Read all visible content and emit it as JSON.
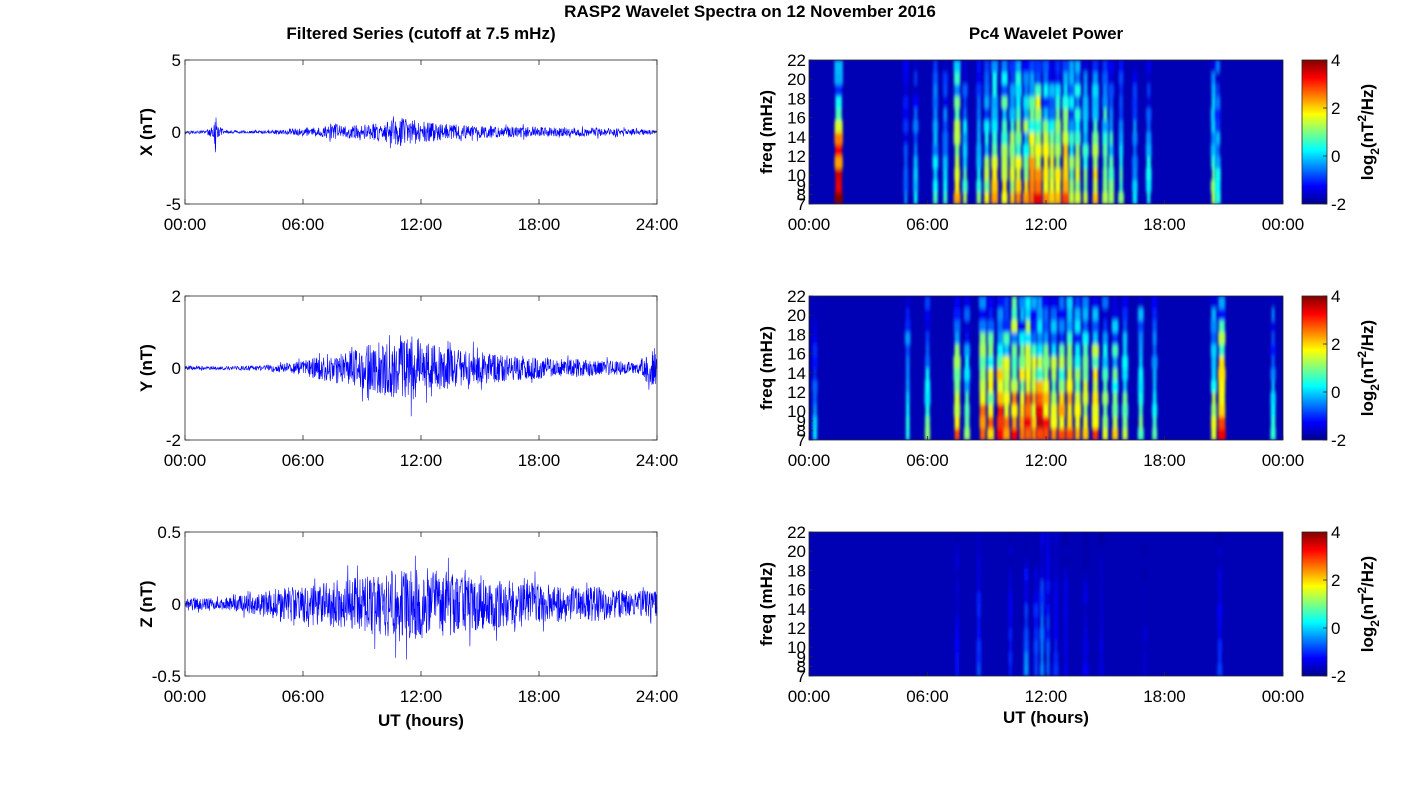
{
  "colors": {
    "trace": "#0000ff",
    "axis": "#000000",
    "background": "#ffffff",
    "colormap": [
      "#00008f",
      "#0000ff",
      "#00ffff",
      "#ffff00",
      "#ff0000",
      "#800000"
    ]
  },
  "figure": {
    "suptitle": "RASP2 Wavelet Spectra on 12 November 2016",
    "left_title": "Filtered Series (cutoff at 7.5 mHz)",
    "right_title": "Pc4 Wavelet Power"
  },
  "chart_data": [
    {
      "type": "line",
      "panel": "X",
      "ylabel": "X (nT)",
      "xlabel": "",
      "xticks": [
        "00:00",
        "06:00",
        "12:00",
        "18:00",
        "24:00"
      ],
      "xlim": [
        0,
        24
      ],
      "ylim": [
        -5,
        5
      ],
      "yticks": [
        "5",
        "0",
        "-5"
      ],
      "ytick_values": [
        5,
        0,
        -5
      ],
      "series": [
        {
          "x_hours": [
            0,
            1,
            1.5,
            1.55,
            1.6,
            2,
            3,
            4,
            5,
            6,
            7,
            7.5,
            8,
            9,
            10,
            10.5,
            11,
            11.5,
            12,
            12.5,
            13,
            14,
            15,
            16,
            17,
            18,
            19,
            20,
            21,
            22,
            23,
            24
          ],
          "envelope": [
            0.1,
            0.1,
            0.5,
            2.8,
            0.5,
            0.1,
            0.1,
            0.1,
            0.15,
            0.3,
            0.35,
            0.6,
            0.45,
            0.5,
            0.65,
            0.8,
            1.0,
            0.9,
            0.8,
            0.7,
            0.6,
            0.5,
            0.45,
            0.4,
            0.4,
            0.35,
            0.3,
            0.3,
            0.3,
            0.25,
            0.2,
            0.15
          ]
        }
      ]
    },
    {
      "type": "line",
      "panel": "Y",
      "ylabel": "Y (nT)",
      "xlabel": "",
      "xticks": [
        "00:00",
        "06:00",
        "12:00",
        "18:00",
        "24:00"
      ],
      "xlim": [
        0,
        24
      ],
      "ylim": [
        -2,
        2
      ],
      "yticks": [
        "2",
        "0",
        "-2"
      ],
      "ytick_values": [
        2,
        0,
        -2
      ],
      "series": [
        {
          "x_hours": [
            0,
            1,
            2,
            3,
            4,
            5,
            6,
            7,
            7.5,
            8,
            9,
            10,
            10.5,
            11,
            11.5,
            12,
            12.5,
            13,
            14,
            15,
            16,
            17,
            18,
            19,
            20,
            21,
            22,
            23,
            23.9,
            24
          ],
          "envelope": [
            0.06,
            0.05,
            0.05,
            0.06,
            0.08,
            0.12,
            0.2,
            0.35,
            0.45,
            0.4,
            0.6,
            0.75,
            0.8,
            0.85,
            0.9,
            0.8,
            0.7,
            0.6,
            0.5,
            0.45,
            0.4,
            0.35,
            0.3,
            0.25,
            0.25,
            0.2,
            0.2,
            0.15,
            0.6,
            0.3
          ]
        }
      ]
    },
    {
      "type": "line",
      "panel": "Z",
      "ylabel": "Z (nT)",
      "xlabel": "UT (hours)",
      "xticks": [
        "00:00",
        "06:00",
        "12:00",
        "18:00",
        "24:00"
      ],
      "xlim": [
        0,
        24
      ],
      "ylim": [
        -0.5,
        0.5
      ],
      "yticks": [
        "0.5",
        "0",
        "-0.5"
      ],
      "ytick_values": [
        0.5,
        0,
        -0.5
      ],
      "series": [
        {
          "x_hours": [
            0,
            1,
            2,
            3,
            4,
            5,
            6,
            7,
            8,
            9,
            10,
            11,
            12,
            13,
            14,
            15,
            16,
            17,
            18,
            19,
            20,
            21,
            22,
            23,
            24
          ],
          "envelope": [
            0.05,
            0.04,
            0.04,
            0.06,
            0.09,
            0.12,
            0.13,
            0.15,
            0.17,
            0.2,
            0.22,
            0.24,
            0.26,
            0.24,
            0.2,
            0.18,
            0.17,
            0.16,
            0.14,
            0.13,
            0.12,
            0.12,
            0.1,
            0.09,
            0.1
          ]
        }
      ]
    },
    {
      "type": "heatmap",
      "panel": "X",
      "ylabel": "freq (mHz)",
      "xlabel": "",
      "xticks": [
        "00:00",
        "06:00",
        "12:00",
        "18:00",
        "00:00"
      ],
      "xlim": [
        0,
        24
      ],
      "ylim": [
        7,
        22
      ],
      "yticks": [
        "22",
        "20",
        "18",
        "16",
        "14",
        "12",
        "10",
        "9",
        "8",
        "7"
      ],
      "ytick_values": [
        22,
        20,
        18,
        16,
        14,
        12,
        10,
        9,
        8,
        7
      ],
      "colorbar": {
        "label": "log2(nT^2/Hz)",
        "label_main": "log",
        "label_sub": "2",
        "label_rest_a": "(nT",
        "label_sup": "2",
        "label_rest_b": "/Hz)",
        "range": [
          -2,
          4
        ],
        "ticks": [
          "4",
          "2",
          "0",
          "-2"
        ],
        "tick_values": [
          4,
          2,
          0,
          -2
        ]
      },
      "bursts_hours": [
        1.5,
        4.9,
        5.4,
        6.4,
        6.9,
        7.5,
        7.9,
        8.6,
        9.0,
        9.4,
        9.9,
        10.3,
        10.6,
        11.0,
        11.3,
        11.6,
        12.0,
        12.3,
        12.6,
        13.0,
        13.3,
        13.6,
        14.0,
        14.5,
        15.0,
        15.3,
        15.8,
        16.5,
        17.2,
        20.5,
        20.7
      ],
      "burst_levels": [
        4.0,
        -0.5,
        0.2,
        0.5,
        0.3,
        2.5,
        1.0,
        0.8,
        1.5,
        2.0,
        2.2,
        1.8,
        2.5,
        2.0,
        2.8,
        3.0,
        2.5,
        2.0,
        2.2,
        3.0,
        1.5,
        1.8,
        1.5,
        2.0,
        1.5,
        1.0,
        0.8,
        0.2,
        0.5,
        1.2,
        0.6
      ]
    },
    {
      "type": "heatmap",
      "panel": "Y",
      "ylabel": "freq (mHz)",
      "xlabel": "",
      "xticks": [
        "00:00",
        "06:00",
        "12:00",
        "18:00",
        "00:00"
      ],
      "xlim": [
        0,
        24
      ],
      "ylim": [
        7,
        22
      ],
      "yticks": [
        "22",
        "20",
        "18",
        "16",
        "14",
        "12",
        "10",
        "9",
        "8",
        "7"
      ],
      "ytick_values": [
        22,
        20,
        18,
        16,
        14,
        12,
        10,
        9,
        8,
        7
      ],
      "colorbar": {
        "label": "log2(nT^2/Hz)",
        "label_main": "log",
        "label_sub": "2",
        "label_rest_a": "(nT",
        "label_sup": "2",
        "label_rest_b": "/Hz)",
        "range": [
          -2,
          4
        ],
        "ticks": [
          "4",
          "2",
          "0",
          "-2"
        ],
        "tick_values": [
          4,
          2,
          0,
          -2
        ]
      },
      "bursts_hours": [
        0.3,
        5.0,
        6.0,
        7.5,
        8.0,
        8.8,
        9.2,
        9.7,
        10.0,
        10.4,
        10.8,
        11.1,
        11.4,
        11.7,
        12.0,
        12.4,
        12.8,
        13.2,
        13.6,
        14.0,
        14.5,
        15.0,
        15.5,
        16.0,
        16.8,
        17.5,
        20.5,
        20.9,
        23.5
      ],
      "burst_levels": [
        0.0,
        0.5,
        0.8,
        2.5,
        1.0,
        3.0,
        2.5,
        3.5,
        2.8,
        3.0,
        2.5,
        3.2,
        2.8,
        3.5,
        3.0,
        2.5,
        2.5,
        2.8,
        2.2,
        2.0,
        2.5,
        1.5,
        1.8,
        1.2,
        1.0,
        0.8,
        1.5,
        3.0,
        0.5
      ]
    },
    {
      "type": "heatmap",
      "panel": "Z",
      "ylabel": "freq (mHz)",
      "xlabel": "UT (hours)",
      "xticks": [
        "00:00",
        "06:00",
        "12:00",
        "18:00",
        "00:00"
      ],
      "xlim": [
        0,
        24
      ],
      "ylim": [
        7,
        22
      ],
      "yticks": [
        "22",
        "20",
        "18",
        "16",
        "14",
        "12",
        "10",
        "9",
        "8",
        "7"
      ],
      "ytick_values": [
        22,
        20,
        18,
        16,
        14,
        12,
        10,
        9,
        8,
        7
      ],
      "colorbar": {
        "label": "log2(nT^2/Hz)",
        "label_main": "log",
        "label_sub": "2",
        "label_rest_a": "(nT",
        "label_sup": "2",
        "label_rest_b": "/Hz)",
        "range": [
          -2,
          4
        ],
        "ticks": [
          "4",
          "2",
          "0",
          "-2"
        ],
        "tick_values": [
          4,
          2,
          0,
          -2
        ]
      },
      "bursts_hours": [
        7.5,
        8.6,
        10.2,
        11.0,
        11.5,
        11.8,
        12.1,
        12.5,
        13.0,
        14.0,
        14.8,
        17.0,
        20.8
      ],
      "burst_levels": [
        -1.2,
        -0.8,
        -1.0,
        -0.5,
        -0.8,
        -0.3,
        -0.6,
        -1.0,
        -1.2,
        -1.3,
        -1.4,
        -1.5,
        -1.0
      ]
    }
  ]
}
